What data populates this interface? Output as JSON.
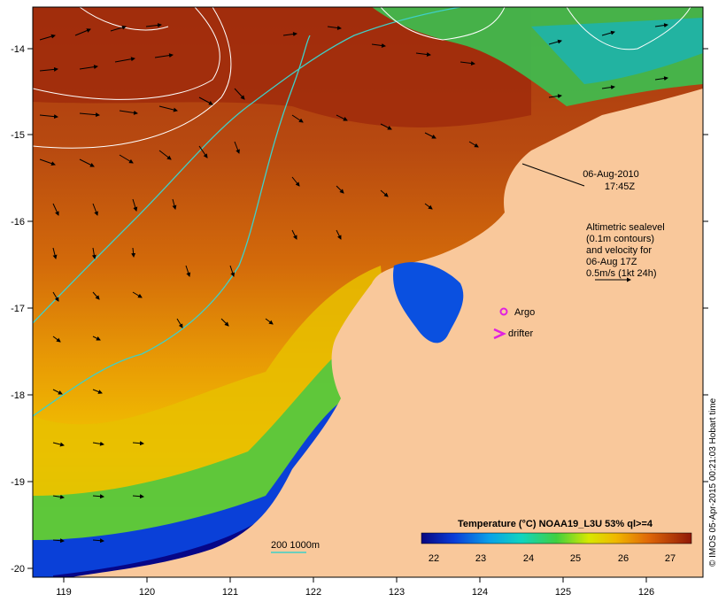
{
  "map": {
    "timestamp": {
      "date": "06-Aug-2010",
      "time": "17:45Z"
    },
    "legend_velocity": {
      "lines": [
        "Altimetric sealevel",
        "(0.1m contours)",
        "and velocity for",
        "06-Aug 17Z",
        "0.5m/s (1kt 24h)"
      ]
    },
    "markers": {
      "argo": "Argo",
      "drifter": "drifter"
    },
    "depth_contour_label": "200  1000m",
    "x_axis": {
      "ticks": [
        "119",
        "120",
        "121",
        "122",
        "123",
        "124",
        "125",
        "126"
      ]
    },
    "y_axis": {
      "ticks": [
        "-14",
        "-15",
        "-16",
        "-17",
        "-18",
        "-19",
        "-20"
      ]
    },
    "colorbar": {
      "title": "Temperature (°C) NOAA19_L3U 53% ql>=4",
      "ticks": [
        "22",
        "23",
        "24",
        "25",
        "26",
        "27"
      ]
    },
    "credit": "© IMOS 05-Apr-2015 00:21:03 Hobart time",
    "colors": {
      "land": "#f9c89b",
      "sst_warm": "#a83a12",
      "sst_cool": "#08089a",
      "contour_isobath": "#3fd0c8",
      "marker": "#e020e0"
    }
  }
}
